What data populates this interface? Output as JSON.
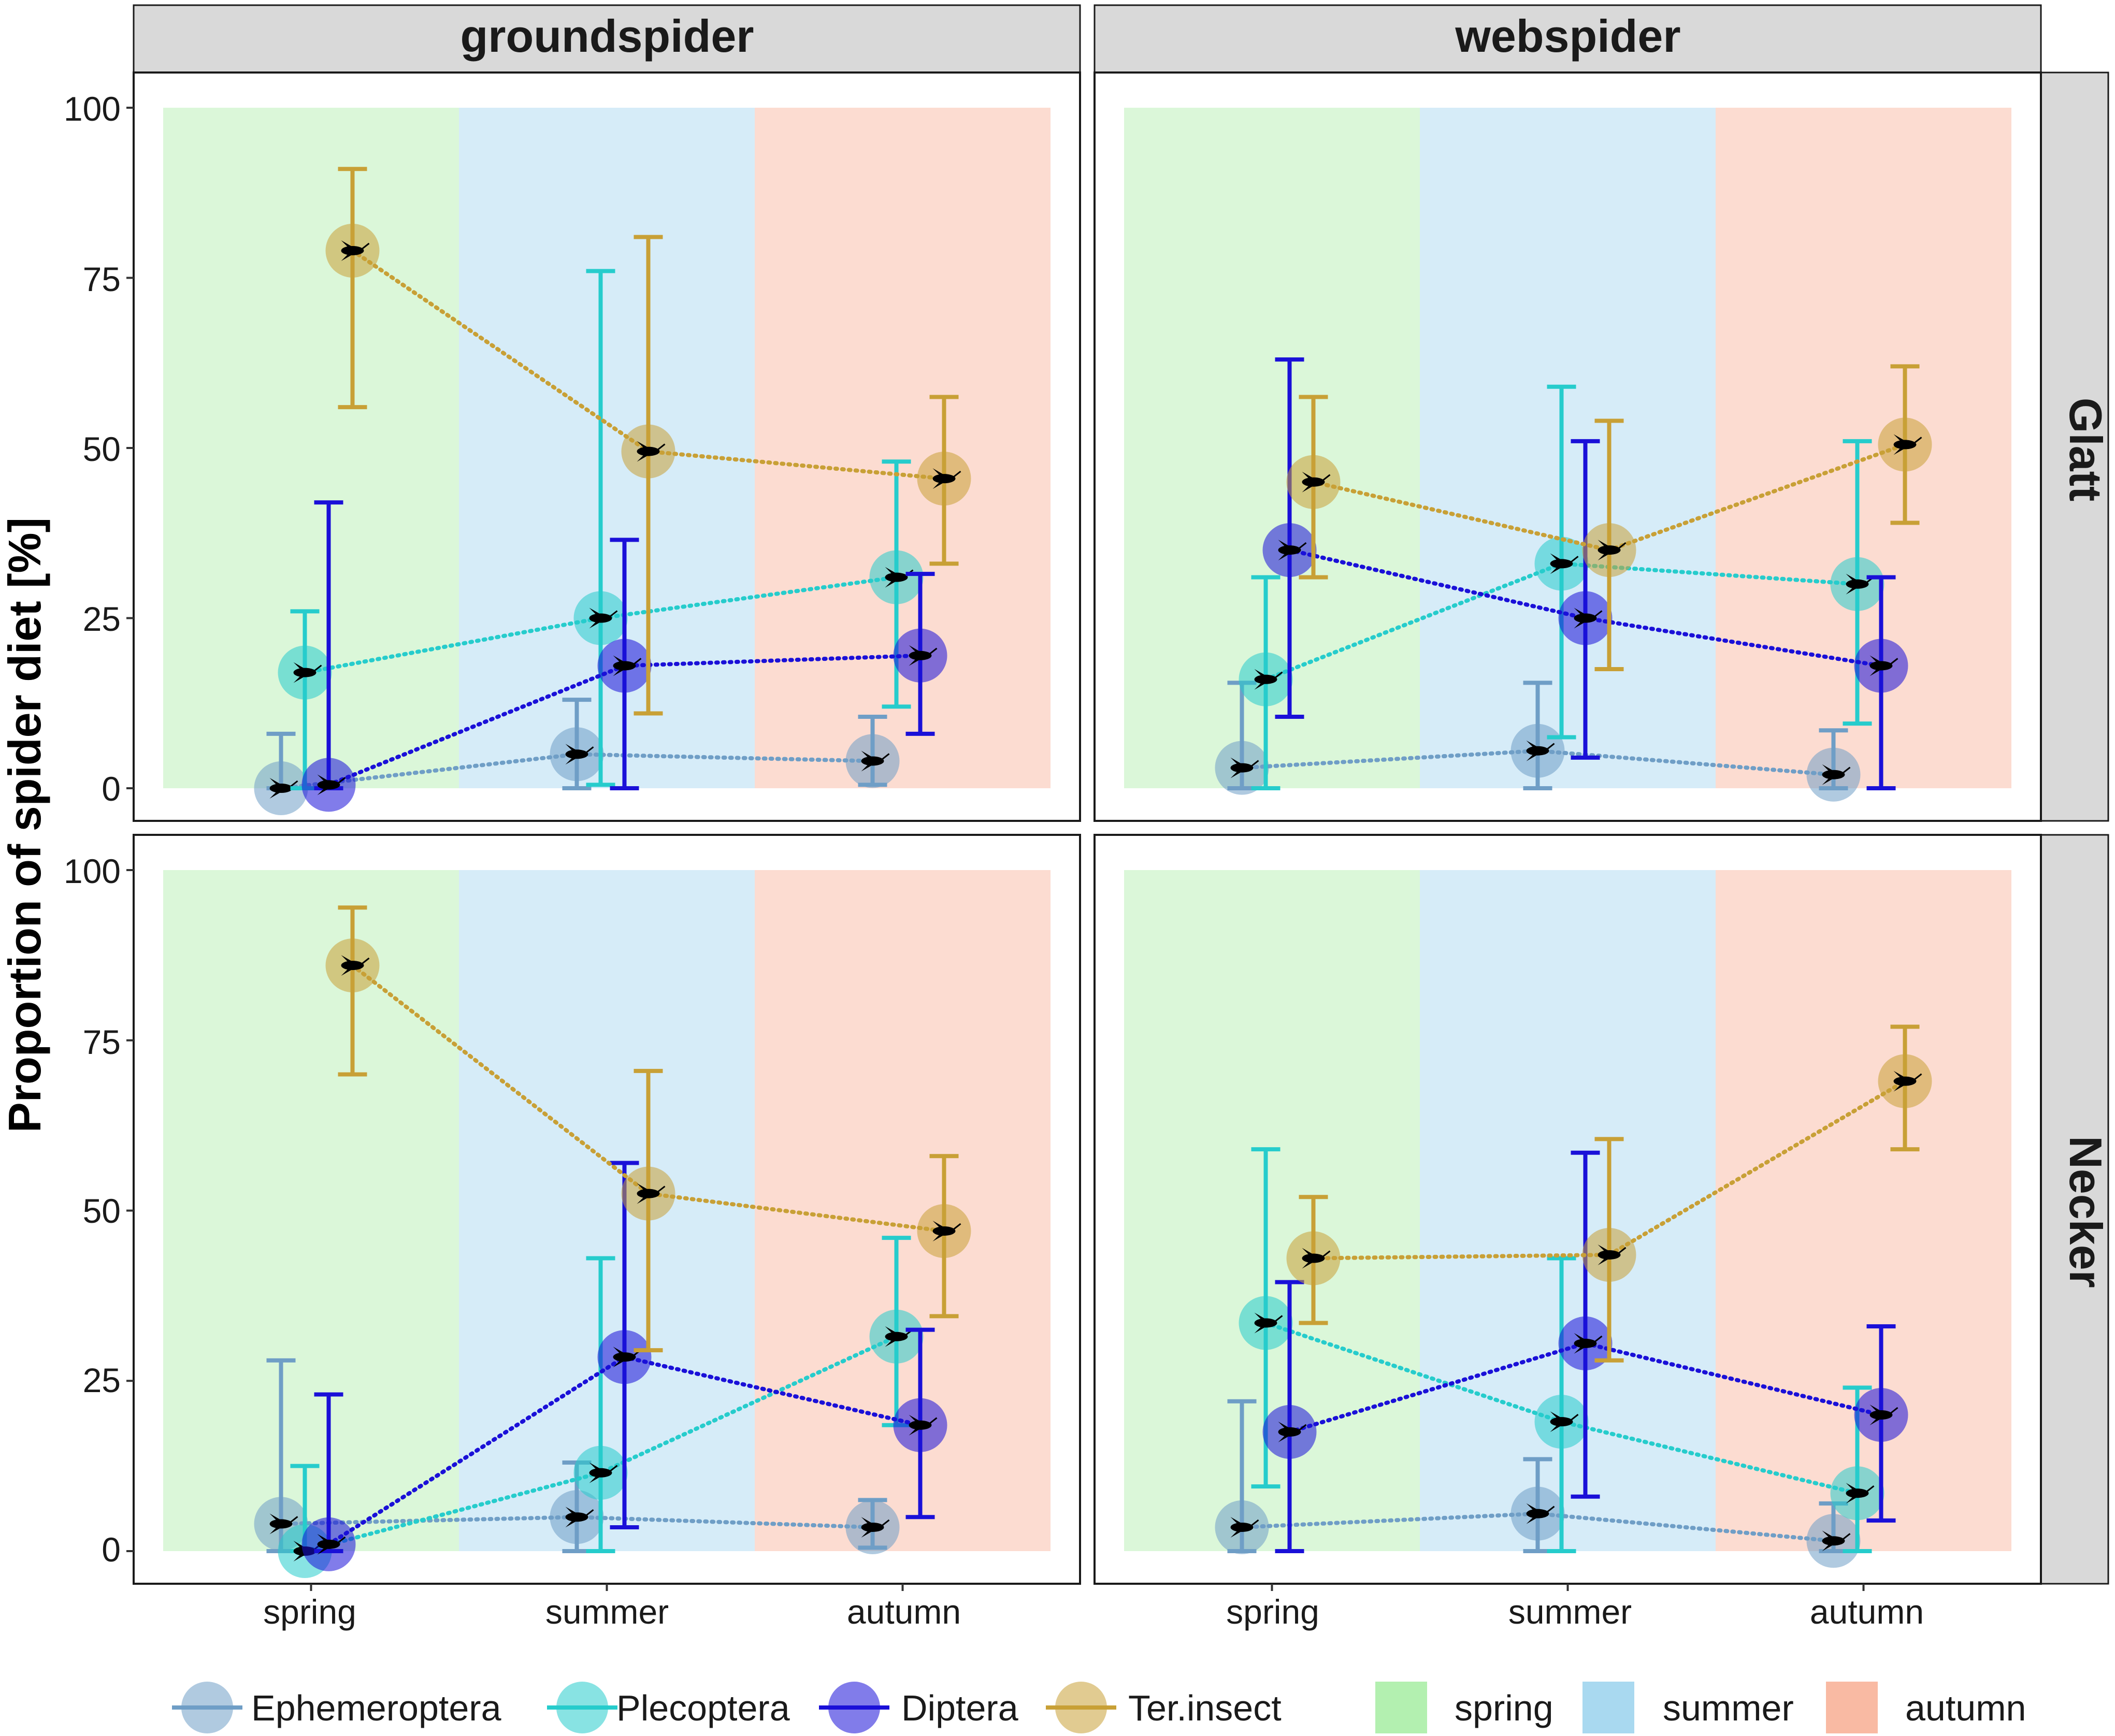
{
  "chart_data": {
    "type": "scatter",
    "ylabel": "Proportion of spider diet [%]",
    "ylim": [
      0,
      100
    ],
    "yticks": [
      0,
      25,
      50,
      75,
      100
    ],
    "categories": [
      "spring",
      "summer",
      "autumn"
    ],
    "columns": [
      "groundspider",
      "webspider"
    ],
    "rows": [
      "Glatt",
      "Necker"
    ],
    "series_names": [
      "Ephemeroptera",
      "Plecoptera",
      "Diptera",
      "Ter.insect"
    ],
    "colors": {
      "Ephemeroptera": "#6f9ec6",
      "Plecoptera": "#26cccc",
      "Diptera": "#1a10d8",
      "Ter.insect": "#c8a036",
      "spring": "#dbf7d9",
      "summer": "#d6ecf8",
      "autumn": "#fcdcd1",
      "legend_spring": "#b3f0b0",
      "legend_summer": "#a9d9f0",
      "legend_autumn": "#f9baa3"
    },
    "season_legend": [
      "spring",
      "summer",
      "autumn"
    ],
    "panels": [
      {
        "column": "groundspider",
        "row": "Glatt",
        "series": [
          {
            "name": "Ephemeroptera",
            "values": [
              0,
              5,
              4
            ],
            "lower": [
              0,
              0,
              0.5
            ],
            "upper": [
              8,
              13,
              10.5
            ]
          },
          {
            "name": "Plecoptera",
            "values": [
              17,
              25,
              31
            ],
            "lower": [
              0,
              0.5,
              12
            ],
            "upper": [
              26,
              76,
              48
            ]
          },
          {
            "name": "Diptera",
            "values": [
              0.5,
              18,
              19.5
            ],
            "lower": [
              0,
              0,
              8
            ],
            "upper": [
              42,
              36.5,
              31.5
            ]
          },
          {
            "name": "Ter.insect",
            "values": [
              79,
              49.5,
              45.5
            ],
            "lower": [
              56,
              11,
              33
            ],
            "upper": [
              91,
              81,
              57.5
            ]
          }
        ]
      },
      {
        "column": "webspider",
        "row": "Glatt",
        "series": [
          {
            "name": "Ephemeroptera",
            "values": [
              3,
              5.5,
              2
            ],
            "lower": [
              0,
              0,
              0
            ],
            "upper": [
              15.5,
              15.5,
              8.5
            ]
          },
          {
            "name": "Plecoptera",
            "values": [
              16,
              33,
              30
            ],
            "lower": [
              0,
              7.5,
              9.5
            ],
            "upper": [
              31,
              59,
              51
            ]
          },
          {
            "name": "Diptera",
            "values": [
              35,
              25,
              18
            ],
            "lower": [
              10.5,
              4.5,
              0
            ],
            "upper": [
              63,
              51,
              31
            ]
          },
          {
            "name": "Ter.insect",
            "values": [
              45,
              35,
              50.5
            ],
            "lower": [
              31,
              17.5,
              39
            ],
            "upper": [
              57.5,
              54,
              62
            ]
          }
        ]
      },
      {
        "column": "groundspider",
        "row": "Necker",
        "series": [
          {
            "name": "Ephemeroptera",
            "values": [
              4,
              5,
              3.5
            ],
            "lower": [
              0,
              0,
              0.5
            ],
            "upper": [
              28,
              13,
              7.5
            ]
          },
          {
            "name": "Plecoptera",
            "values": [
              0,
              11.5,
              31.5
            ],
            "lower": [
              0,
              0,
              18.5
            ],
            "upper": [
              12.5,
              43,
              46
            ]
          },
          {
            "name": "Diptera",
            "values": [
              1,
              28.5,
              18.5
            ],
            "lower": [
              0,
              3.5,
              5
            ],
            "upper": [
              23,
              57,
              32.5
            ]
          },
          {
            "name": "Ter.insect",
            "values": [
              86,
              52.5,
              47
            ],
            "lower": [
              70,
              29.5,
              34.5
            ],
            "upper": [
              94.5,
              70.5,
              58
            ]
          }
        ]
      },
      {
        "column": "webspider",
        "row": "Necker",
        "series": [
          {
            "name": "Ephemeroptera",
            "values": [
              3.5,
              5.5,
              1.5
            ],
            "lower": [
              0,
              0,
              0
            ],
            "upper": [
              22,
              13.5,
              7
            ]
          },
          {
            "name": "Plecoptera",
            "values": [
              33.5,
              19,
              8.5
            ],
            "lower": [
              9.5,
              0,
              0
            ],
            "upper": [
              59,
              43,
              24
            ]
          },
          {
            "name": "Diptera",
            "values": [
              17.5,
              30.5,
              20
            ],
            "lower": [
              0,
              8,
              4.5
            ],
            "upper": [
              39.5,
              58.5,
              33
            ]
          },
          {
            "name": "Ter.insect",
            "values": [
              43,
              43.5,
              69
            ],
            "lower": [
              33.5,
              28,
              59
            ],
            "upper": [
              52,
              60.5,
              77
            ]
          }
        ]
      }
    ]
  }
}
